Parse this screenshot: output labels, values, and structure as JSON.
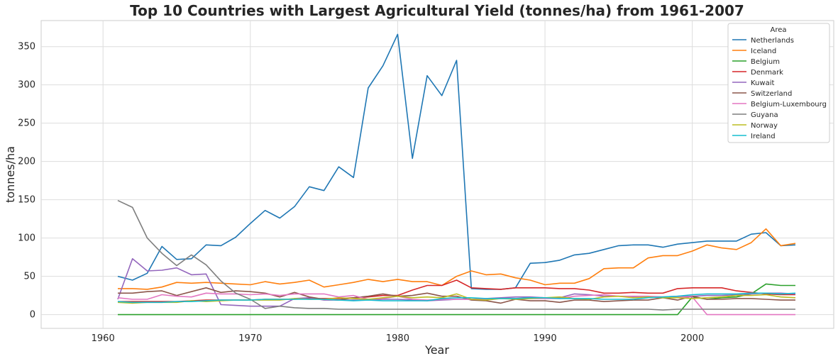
{
  "chart_data": {
    "type": "line",
    "title": "Top 10 Countries with Largest Agricultural Yield (tonnes/ha) from 1961-2007",
    "xlabel": "Year",
    "ylabel": "tonnes/ha",
    "xlim": [
      1955.8,
      2009.6
    ],
    "ylim": [
      -18,
      384
    ],
    "xticks": [
      1960,
      1970,
      1980,
      1990,
      2000
    ],
    "yticks": [
      0,
      50,
      100,
      150,
      200,
      250,
      300,
      350
    ],
    "grid": true,
    "legend": {
      "title": "Area",
      "position": "top-right"
    },
    "x": [
      1961,
      1962,
      1963,
      1964,
      1965,
      1966,
      1967,
      1968,
      1969,
      1970,
      1971,
      1972,
      1973,
      1974,
      1975,
      1976,
      1977,
      1978,
      1979,
      1980,
      1981,
      1982,
      1983,
      1984,
      1985,
      1986,
      1987,
      1988,
      1989,
      1990,
      1991,
      1992,
      1993,
      1994,
      1995,
      1996,
      1997,
      1998,
      1999,
      2000,
      2001,
      2002,
      2003,
      2004,
      2005,
      2006,
      2007
    ],
    "series": [
      {
        "name": "Netherlands",
        "color": "#1f77b4",
        "values": [
          50,
          45,
          54,
          89,
          72,
          73,
          91,
          90,
          101,
          119,
          136,
          126,
          141,
          167,
          162,
          193,
          179,
          296,
          325,
          366,
          204,
          312,
          286,
          332,
          34,
          33,
          33,
          35,
          67,
          68,
          71,
          78,
          80,
          85,
          90,
          91,
          91,
          88,
          92,
          94,
          96,
          96,
          96,
          105,
          107,
          90,
          91
        ]
      },
      {
        "name": "Iceland",
        "color": "#ff7f0e",
        "values": [
          34,
          34,
          33,
          36,
          42,
          41,
          42,
          41,
          40,
          39,
          43,
          40,
          42,
          45,
          36,
          39,
          42,
          46,
          43,
          46,
          43,
          43,
          38,
          50,
          57,
          52,
          53,
          48,
          45,
          39,
          41,
          41,
          47,
          60,
          61,
          61,
          74,
          77,
          77,
          83,
          91,
          87,
          85,
          94,
          112,
          90,
          93
        ]
      },
      {
        "name": "Belgium",
        "color": "#2ca02c",
        "values": [
          0,
          0,
          0,
          0,
          0,
          0,
          0,
          0,
          0,
          0,
          0,
          0,
          0,
          0,
          0,
          0,
          0,
          0,
          0,
          0,
          0,
          0,
          0,
          0,
          0,
          0,
          0,
          0,
          0,
          0,
          0,
          0,
          0,
          0,
          0,
          0,
          0,
          0,
          0,
          23,
          20,
          22,
          23,
          27,
          40,
          38,
          38
        ]
      },
      {
        "name": "Denmark",
        "color": "#d62728",
        "values": [
          17,
          17,
          17,
          17,
          17,
          18,
          19,
          19,
          19,
          19,
          20,
          20,
          20,
          21,
          21,
          21,
          22,
          23,
          25,
          25,
          32,
          38,
          38,
          45,
          35,
          34,
          33,
          35,
          35,
          35,
          34,
          34,
          32,
          28,
          28,
          29,
          28,
          28,
          34,
          35,
          35,
          35,
          31,
          29,
          27,
          26,
          26
        ]
      },
      {
        "name": "Kuwait",
        "color": "#9467bd",
        "values": [
          20,
          73,
          57,
          58,
          61,
          52,
          53,
          13,
          12,
          11,
          11,
          11,
          21,
          22,
          19,
          19,
          19,
          19,
          20,
          20,
          19,
          18,
          19,
          20,
          20,
          21,
          22,
          23,
          23,
          22,
          22,
          27,
          26,
          24,
          24,
          23,
          23,
          23,
          24,
          24,
          25,
          25,
          26,
          27,
          28,
          28,
          27
        ]
      },
      {
        "name": "Switzerland",
        "color": "#8c564b",
        "values": [
          28,
          28,
          30,
          31,
          25,
          30,
          35,
          29,
          31,
          30,
          28,
          23,
          29,
          23,
          20,
          19,
          22,
          24,
          27,
          24,
          25,
          28,
          24,
          24,
          19,
          18,
          15,
          20,
          18,
          18,
          16,
          19,
          19,
          17,
          18,
          19,
          19,
          22,
          19,
          24,
          20,
          20,
          21,
          21,
          20,
          19,
          19
        ]
      },
      {
        "name": "Belgium-Luxembourg",
        "color": "#e377c2",
        "values": [
          22,
          20,
          20,
          26,
          24,
          23,
          28,
          27,
          27,
          26,
          27,
          25,
          27,
          27,
          27,
          23,
          25,
          20,
          21,
          24,
          20,
          19,
          20,
          20,
          20,
          20,
          21,
          21,
          21,
          21,
          21,
          24,
          25,
          26,
          24,
          24,
          24,
          23,
          23,
          23,
          0,
          0,
          0,
          0,
          0,
          0,
          0
        ]
      },
      {
        "name": "Guyana",
        "color": "#7f7f7f",
        "values": [
          149,
          140,
          100,
          80,
          64,
          78,
          65,
          44,
          28,
          20,
          8,
          11,
          9,
          8,
          8,
          7,
          7,
          7,
          7,
          7,
          7,
          7,
          7,
          7,
          7,
          7,
          7,
          7,
          7,
          7,
          7,
          7,
          7,
          7,
          7,
          7,
          7,
          6,
          7,
          7,
          7,
          7,
          7,
          7,
          7,
          7,
          7
        ]
      },
      {
        "name": "Norway",
        "color": "#bcbd22",
        "values": [
          16,
          15,
          16,
          16,
          16,
          18,
          17,
          18,
          19,
          19,
          19,
          19,
          21,
          20,
          20,
          22,
          21,
          20,
          22,
          24,
          22,
          23,
          22,
          27,
          20,
          19,
          21,
          20,
          21,
          22,
          23,
          21,
          20,
          23,
          24,
          22,
          23,
          22,
          22,
          21,
          22,
          23,
          25,
          25,
          26,
          23,
          22
        ]
      },
      {
        "name": "Ireland",
        "color": "#17becf",
        "values": [
          17,
          16,
          16,
          16,
          17,
          17,
          18,
          19,
          19,
          19,
          20,
          20,
          20,
          20,
          20,
          19,
          18,
          19,
          18,
          18,
          18,
          18,
          21,
          22,
          22,
          21,
          21,
          21,
          22,
          22,
          21,
          21,
          21,
          20,
          20,
          20,
          22,
          23,
          24,
          26,
          27,
          27,
          27,
          28,
          28,
          27,
          28
        ]
      }
    ]
  }
}
